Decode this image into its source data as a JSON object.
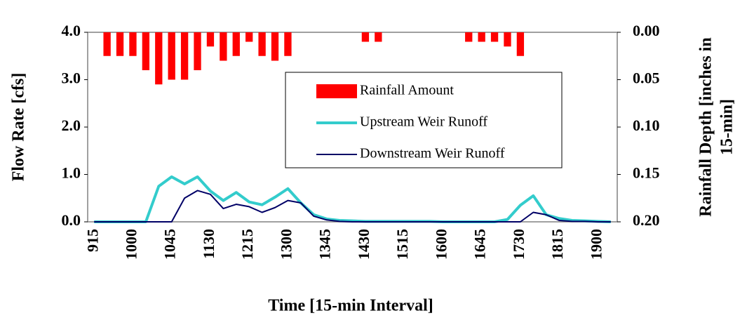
{
  "chart_data": {
    "type": "combo",
    "x_label": "Time [15-min Interval]",
    "y_label": "Flow Rate [cfs]",
    "y2_label": [
      "Rainfall Depth [inches in",
      "15-min]"
    ],
    "categories": [
      "915",
      null,
      null,
      "1000",
      null,
      null,
      "1045",
      null,
      null,
      "1130",
      null,
      null,
      "1215",
      null,
      null,
      "1300",
      null,
      null,
      "1345",
      null,
      null,
      "1430",
      null,
      null,
      "1515",
      null,
      null,
      "1600",
      null,
      null,
      "1645",
      null,
      null,
      "1730",
      null,
      null,
      "1815",
      null,
      null,
      "1900",
      null
    ],
    "ylim": [
      0,
      4
    ],
    "yticks": [
      {
        "value": 0,
        "label": "0.0"
      },
      {
        "value": 1,
        "label": "1.0"
      },
      {
        "value": 2,
        "label": "2.0"
      },
      {
        "value": 3,
        "label": "3.0"
      },
      {
        "value": 4,
        "label": "4.0"
      }
    ],
    "y2lim": [
      0.2,
      0
    ],
    "y2ticks": [
      {
        "value": 0,
        "label": "0.00"
      },
      {
        "value": 0.05,
        "label": "0.05"
      },
      {
        "value": 0.1,
        "label": "0.10"
      },
      {
        "value": 0.15,
        "label": "0.15"
      },
      {
        "value": 0.2,
        "label": "0.20"
      }
    ],
    "series": [
      {
        "name": "Rainfall Amount",
        "type": "bar",
        "axis": "y2",
        "color": "#ff0000",
        "values": [
          0,
          0.025,
          0.025,
          0.025,
          0.04,
          0.055,
          0.05,
          0.05,
          0.04,
          0.015,
          0.03,
          0.025,
          0.01,
          0.025,
          0.03,
          0.025,
          0,
          0,
          0,
          0,
          0,
          0.01,
          0.01,
          0,
          0,
          0,
          0,
          0,
          0,
          0.01,
          0.01,
          0.01,
          0.015,
          0.025,
          0,
          0,
          0,
          0,
          0,
          0,
          0
        ]
      },
      {
        "name": "Upstream Weir Runoff",
        "type": "line",
        "color": "#33cccc",
        "values": [
          0,
          0,
          0,
          0,
          0,
          0.75,
          0.95,
          0.8,
          0.95,
          0.65,
          0.45,
          0.62,
          0.42,
          0.36,
          0.52,
          0.7,
          0.4,
          0.15,
          0.06,
          0.03,
          0.02,
          0.01,
          0.01,
          0.01,
          0.01,
          0.01,
          0.01,
          0,
          0,
          0,
          0,
          0,
          0.05,
          0.35,
          0.55,
          0.15,
          0.07,
          0.03,
          0.02,
          0.01,
          0
        ]
      },
      {
        "name": "Downstream Weir Runoff",
        "type": "line",
        "color": "#000066",
        "values": [
          0,
          0,
          0,
          0,
          0,
          0,
          0,
          0.5,
          0.66,
          0.58,
          0.28,
          0.37,
          0.32,
          0.2,
          0.3,
          0.45,
          0.4,
          0.12,
          0.04,
          0.01,
          0,
          0,
          0,
          0,
          0,
          0,
          0,
          0,
          0,
          0,
          0,
          0,
          0,
          0,
          0.2,
          0.15,
          0.03,
          0.01,
          0.01,
          0,
          0
        ]
      }
    ]
  }
}
